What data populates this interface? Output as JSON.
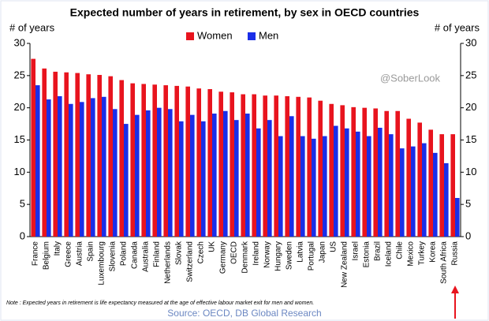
{
  "chart_data": {
    "type": "bar",
    "title": "Expected number of years in retirement, by sex in OECD countries",
    "y_label": "# of years",
    "y2_label": "# of years",
    "annotation": "@SoberLook",
    "note": "Note : Expected years in retirement is life expectancy measured at the age of effective labour market exit for men and women.",
    "source": "Source: OECD, DB Global Research",
    "categories": [
      "France",
      "Belgium",
      "Italy",
      "Greece",
      "Austria",
      "Spain",
      "Luxembourg",
      "Slovenia",
      "Poland",
      "Canada",
      "Australia",
      "Finland",
      "Netherlands",
      "Slovak",
      "Switzerland",
      "Czech",
      "UK",
      "Germany",
      "OECD",
      "Denmark",
      "Ireland",
      "Norway",
      "Hungary",
      "Sweden",
      "Latvia",
      "Portugal",
      "Japan",
      "US",
      "New Zealand",
      "Israel",
      "Estonia",
      "Brazil",
      "Iceland",
      "Chile",
      "Mexico",
      "Turkey",
      "Korea",
      "South Africa",
      "Russia"
    ],
    "series": [
      {
        "name": "Women",
        "color": "#e8141e",
        "values": [
          27.6,
          26.1,
          25.6,
          25.5,
          25.4,
          25.2,
          25.1,
          24.9,
          24.3,
          23.8,
          23.7,
          23.6,
          23.5,
          23.4,
          23.3,
          23.0,
          22.9,
          22.5,
          22.4,
          22.1,
          22.1,
          21.9,
          21.9,
          21.8,
          21.7,
          21.6,
          21.1,
          20.6,
          20.4,
          20.1,
          20.0,
          19.9,
          19.5,
          19.5,
          18.3,
          17.7,
          16.6,
          15.9,
          15.9
        ]
      },
      {
        "name": "Men",
        "color": "#1a2ee8",
        "values": [
          23.5,
          21.3,
          21.8,
          20.6,
          20.9,
          21.5,
          21.7,
          19.8,
          17.5,
          18.9,
          19.6,
          20.0,
          19.8,
          17.9,
          18.9,
          17.9,
          19.1,
          19.5,
          18.1,
          19.1,
          16.8,
          18.1,
          15.6,
          18.7,
          15.6,
          15.2,
          15.6,
          17.2,
          16.8,
          16.3,
          15.6,
          16.9,
          15.9,
          13.7,
          14.0,
          14.5,
          13.0,
          11.4,
          6.0
        ]
      }
    ],
    "ylim": [
      0,
      30
    ],
    "yticks": [
      0,
      5,
      10,
      15,
      20,
      25,
      30
    ],
    "y2lim": [
      0,
      30
    ],
    "y2ticks": [
      0,
      5,
      10,
      15,
      20,
      25,
      30
    ],
    "grid": false,
    "legend_position": "top"
  }
}
